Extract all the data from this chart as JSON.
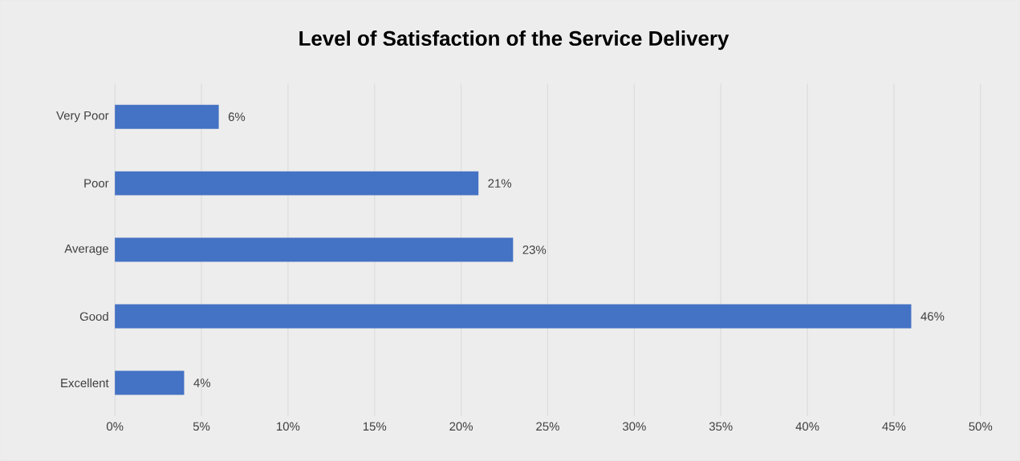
{
  "chart_data": {
    "type": "bar",
    "orientation": "horizontal",
    "title": "Level of Satisfaction of the Service Delivery",
    "categories": [
      "Very Poor",
      "Poor",
      "Average",
      "Good",
      "Excellent"
    ],
    "values": [
      6,
      21,
      23,
      46,
      4
    ],
    "value_labels": [
      "6%",
      "21%",
      "23%",
      "46%",
      "4%"
    ],
    "color": "#4472c4",
    "xlim": [
      0,
      50
    ],
    "xticks": [
      {
        "value": 0,
        "label": "0%"
      },
      {
        "value": 5,
        "label": "5%"
      },
      {
        "value": 10,
        "label": "10%"
      },
      {
        "value": 15,
        "label": "15%"
      },
      {
        "value": 20,
        "label": "20%"
      },
      {
        "value": 25,
        "label": "25%"
      },
      {
        "value": 30,
        "label": "30%"
      },
      {
        "value": 35,
        "label": "35%"
      },
      {
        "value": 40,
        "label": "40%"
      },
      {
        "value": 45,
        "label": "45%"
      },
      {
        "value": 50,
        "label": "50%"
      }
    ],
    "grid": "x"
  }
}
